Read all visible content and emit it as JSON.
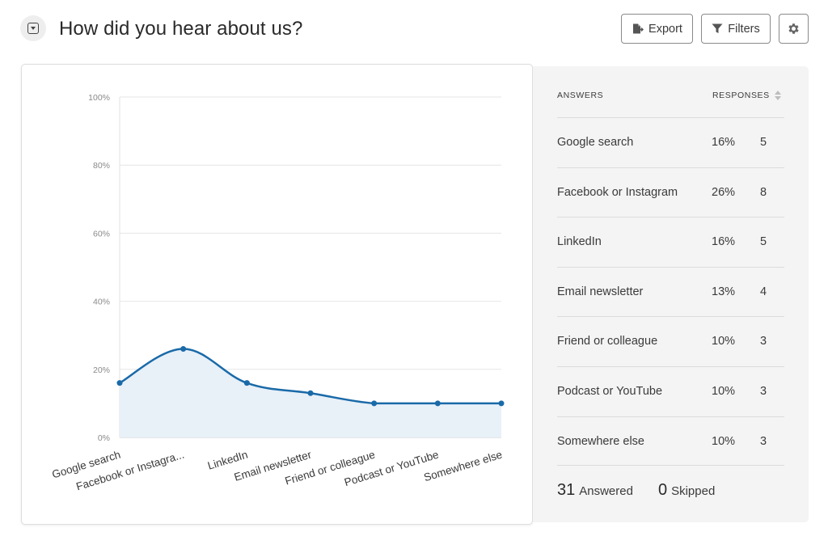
{
  "header": {
    "title": "How did you hear about us?",
    "export_label": "Export",
    "filters_label": "Filters"
  },
  "table": {
    "col_answers": "ANSWERS",
    "col_responses": "RESPONSES",
    "rows": [
      {
        "label": "Google search",
        "percent": "16%",
        "count": "5"
      },
      {
        "label": "Facebook or Instagram",
        "percent": "26%",
        "count": "8"
      },
      {
        "label": "LinkedIn",
        "percent": "16%",
        "count": "5"
      },
      {
        "label": "Email newsletter",
        "percent": "13%",
        "count": "4"
      },
      {
        "label": "Friend or colleague",
        "percent": "10%",
        "count": "3"
      },
      {
        "label": "Podcast or YouTube",
        "percent": "10%",
        "count": "3"
      },
      {
        "label": "Somewhere else",
        "percent": "10%",
        "count": "3"
      }
    ],
    "answered_count": "31",
    "answered_label": "Answered",
    "skipped_count": "0",
    "skipped_label": "Skipped"
  },
  "chart_data": {
    "type": "area",
    "categories": [
      "Google search",
      "Facebook or Instagra...",
      "LinkedIn",
      "Email newsletter",
      "Friend or colleague",
      "Podcast or YouTube",
      "Somewhere else"
    ],
    "values": [
      16,
      26,
      16,
      13,
      10,
      10,
      10
    ],
    "y_ticks": [
      "0%",
      "20%",
      "40%",
      "60%",
      "80%",
      "100%"
    ],
    "ylim": [
      0,
      100
    ],
    "grid": true,
    "line_color": "#1a6aa8",
    "fill_color": "#e8f0f8"
  }
}
